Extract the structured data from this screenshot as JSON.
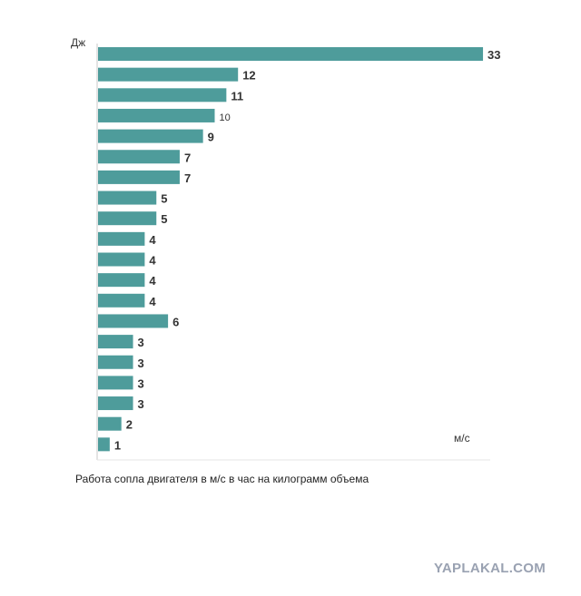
{
  "chart_data": {
    "type": "bar",
    "orientation": "horizontal",
    "ylabel": "Дж",
    "xlabel": "м/с",
    "values": [
      33,
      12,
      11,
      10,
      9,
      7,
      7,
      5,
      5,
      4,
      4,
      4,
      4,
      6,
      3,
      3,
      3,
      3,
      2,
      1
    ],
    "value_labels": [
      "33",
      "12",
      "11",
      "10",
      "9",
      "7",
      "7",
      "5",
      "5",
      "4",
      "4",
      "4",
      "4",
      "6",
      "3",
      "3",
      "3",
      "3",
      "2",
      "1"
    ],
    "bar_color": "#4e9c9b",
    "axis_color": "#c9c9c9"
  },
  "caption": "Работа сопла двигателя в м/с в час на килограмм объема",
  "watermark": "YAPLAKAL.COM"
}
